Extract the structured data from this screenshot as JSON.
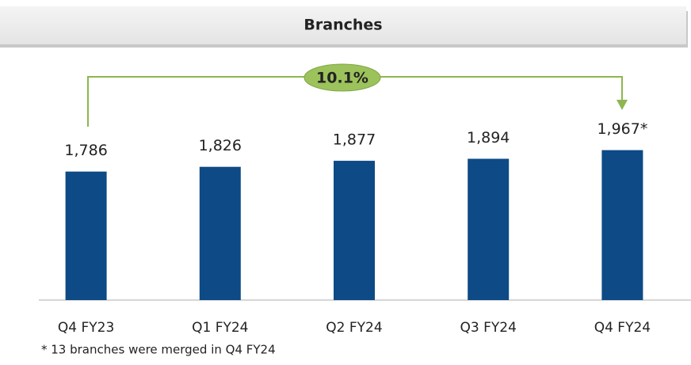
{
  "chart_data": {
    "type": "bar",
    "title": "Branches",
    "categories": [
      "Q4 FY23",
      "Q1 FY24",
      "Q2 FY24",
      "Q3 FY24",
      "Q4 FY24"
    ],
    "values": [
      1786,
      1826,
      1877,
      1894,
      1967
    ],
    "value_labels": [
      "1,786",
      "1,826",
      "1,877",
      "1,894",
      "1,967*"
    ],
    "color": "#0d4a86",
    "ylim": [
      700,
      2600
    ],
    "annotation": "10.1%",
    "footnote": "* 13 branches were merged in Q4 FY24"
  }
}
